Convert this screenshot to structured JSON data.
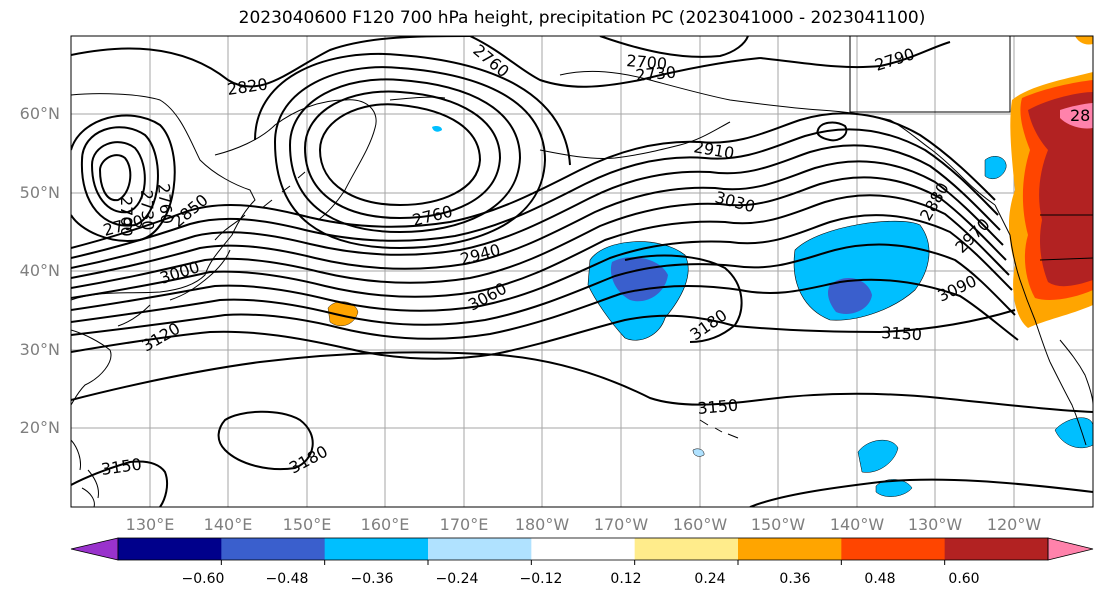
{
  "title": "2023040600 F120 700 hPa height, precipitation PC (2023041000 - 2023041100)",
  "lat_labels": [
    "60°N",
    "50°N",
    "40°N",
    "30°N",
    "20°N"
  ],
  "lon_labels": [
    "130°E",
    "140°E",
    "150°E",
    "160°E",
    "170°E",
    "180°W",
    "170°W",
    "160°W",
    "150°W",
    "140°W",
    "130°W",
    "120°W"
  ],
  "contour_labels": [
    "2820",
    "2760",
    "2700",
    "2730",
    "2790",
    "2700",
    "2730",
    "2760",
    "2790",
    "2850",
    "3000",
    "3120",
    "3150",
    "2760",
    "2940",
    "3060",
    "2910",
    "3030",
    "3180",
    "3150",
    "3090",
    "2970",
    "2880",
    "3150",
    "3180",
    "28"
  ],
  "colorbar": {
    "tick_labels": [
      "−0.60",
      "−0.48",
      "−0.36",
      "−0.24",
      "−0.12",
      "0.12",
      "0.24",
      "0.36",
      "0.48",
      "0.60"
    ],
    "colors": [
      "#9932cc",
      "#00008b",
      "#3a5fcd",
      "#00bfff",
      "#b0e2ff",
      "#ffffff",
      "#ffec8b",
      "#ffa500",
      "#ff4500",
      "#b22222",
      "#ff82ab"
    ]
  },
  "legend": {
    "contour_color": "#000000",
    "positive_anomaly_colors": [
      "#ffa500",
      "#ff4500",
      "#b22222",
      "#ff82ab"
    ],
    "negative_anomaly_colors": [
      "#00bfff",
      "#3a5fcd"
    ]
  }
}
